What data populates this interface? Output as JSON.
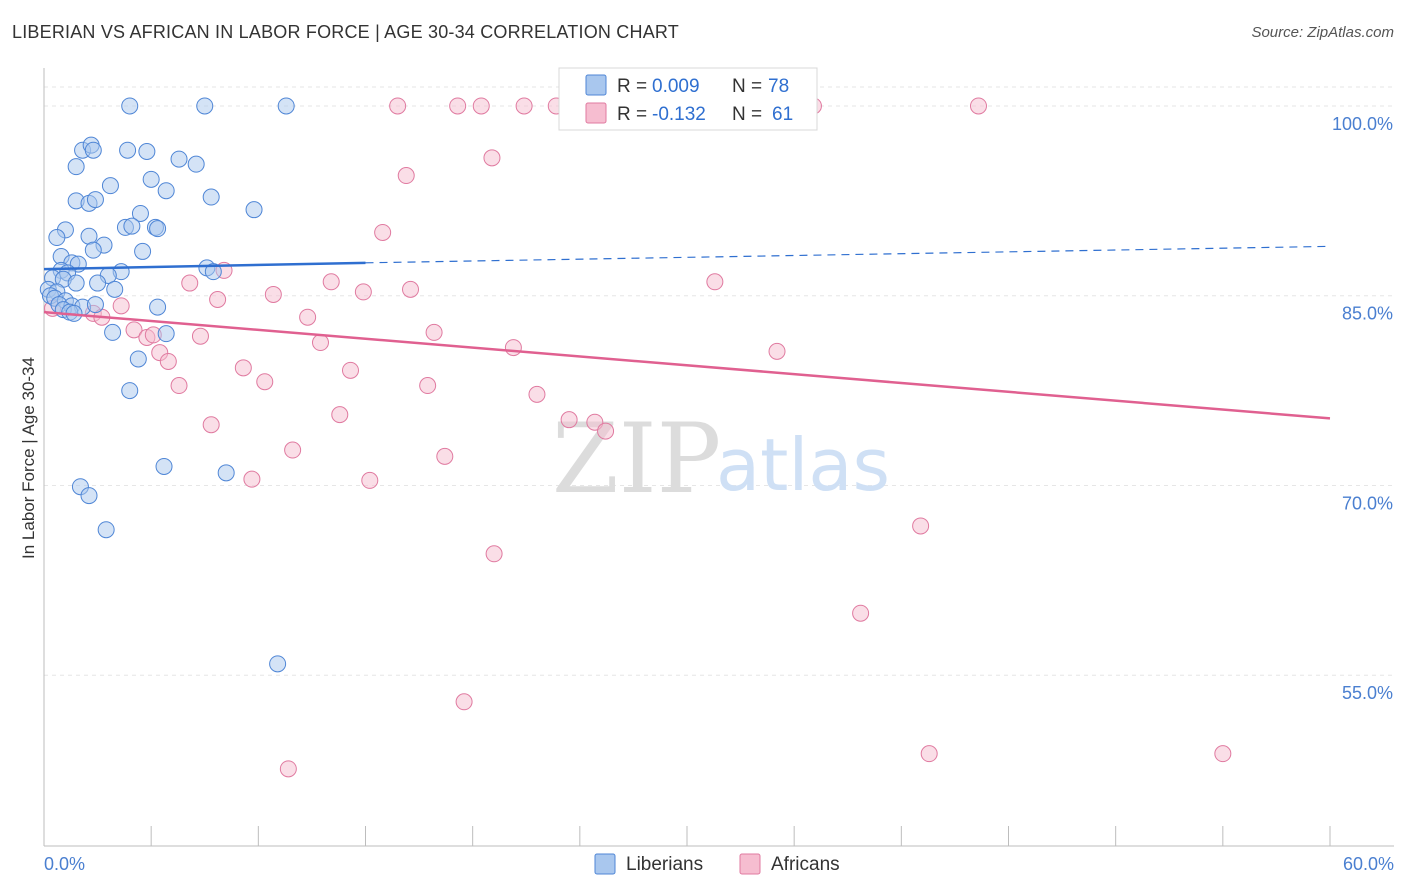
{
  "title": "LIBERIAN VS AFRICAN IN LABOR FORCE | AGE 30-34 CORRELATION CHART",
  "source": "Source: ZipAtlas.com",
  "watermark": {
    "zip": "ZIP",
    "atlas": "atlas"
  },
  "legend": {
    "r_label": "R =",
    "n_label": "N =",
    "items": [
      {
        "r": "0.009",
        "n": "78"
      },
      {
        "r": "-0.132",
        "n": "61"
      }
    ]
  },
  "bottom_legend": [
    "Liberians",
    "Africans"
  ],
  "colors": {
    "liberians_fill": "#a9c7ee",
    "liberians_stroke": "#4f86d6",
    "liberians_line": "#2f6fd0",
    "africans_fill": "#f6bdd0",
    "africans_stroke": "#e07aa0",
    "africans_line": "#e06090",
    "grid": "#e6e6e6",
    "tick_label": "#4a7fd0"
  },
  "chart_data": {
    "type": "scatter",
    "title": "LIBERIAN VS AFRICAN IN LABOR FORCE | AGE 30-34 CORRELATION CHART",
    "xlabel": "",
    "ylabel": "In Labor Force | Age 30-34",
    "xlim": [
      0,
      60
    ],
    "ylim": [
      41.5,
      103
    ],
    "x_tick_labels": [
      "0.0%",
      "60.0%"
    ],
    "y_ticks": [
      100,
      85,
      70,
      55
    ],
    "y_tick_labels": [
      "100.0%",
      "85.0%",
      "70.0%",
      "55.0%"
    ],
    "grid": true,
    "legend_position": "top-center",
    "series": [
      {
        "name": "Liberians",
        "r": 0.009,
        "n": 78,
        "trend": {
          "x": [
            0,
            15
          ],
          "y": [
            87.1,
            87.6
          ],
          "dashed_to": [
            60,
            88.9
          ]
        },
        "points": [
          [
            4.0,
            100.0
          ],
          [
            7.5,
            100.0
          ],
          [
            11.3,
            100.0
          ],
          [
            1.8,
            96.5
          ],
          [
            2.2,
            96.9
          ],
          [
            2.3,
            96.5
          ],
          [
            3.9,
            96.5
          ],
          [
            4.8,
            96.4
          ],
          [
            6.3,
            95.8
          ],
          [
            7.1,
            95.4
          ],
          [
            1.5,
            95.2
          ],
          [
            5.0,
            94.2
          ],
          [
            3.1,
            93.7
          ],
          [
            5.7,
            93.3
          ],
          [
            7.8,
            92.8
          ],
          [
            1.5,
            92.5
          ],
          [
            2.1,
            92.3
          ],
          [
            2.4,
            92.6
          ],
          [
            4.5,
            91.5
          ],
          [
            9.8,
            91.8
          ],
          [
            3.8,
            90.4
          ],
          [
            4.1,
            90.5
          ],
          [
            5.2,
            90.4
          ],
          [
            5.3,
            90.3
          ],
          [
            1.0,
            90.2
          ],
          [
            0.6,
            89.6
          ],
          [
            2.1,
            89.7
          ],
          [
            2.8,
            89.0
          ],
          [
            2.3,
            88.6
          ],
          [
            0.8,
            88.1
          ],
          [
            4.6,
            88.5
          ],
          [
            1.3,
            87.6
          ],
          [
            1.6,
            87.5
          ],
          [
            0.8,
            87.0
          ],
          [
            1.1,
            86.8
          ],
          [
            3.6,
            86.9
          ],
          [
            7.6,
            87.2
          ],
          [
            7.9,
            86.9
          ],
          [
            3.0,
            86.6
          ],
          [
            0.4,
            86.4
          ],
          [
            0.9,
            86.3
          ],
          [
            1.5,
            86.0
          ],
          [
            2.5,
            86.0
          ],
          [
            3.3,
            85.5
          ],
          [
            0.2,
            85.5
          ],
          [
            0.6,
            85.3
          ],
          [
            0.3,
            85.0
          ],
          [
            0.5,
            84.8
          ],
          [
            1.0,
            84.6
          ],
          [
            0.7,
            84.3
          ],
          [
            1.3,
            84.2
          ],
          [
            1.8,
            84.1
          ],
          [
            2.4,
            84.3
          ],
          [
            0.9,
            83.9
          ],
          [
            1.2,
            83.7
          ],
          [
            1.4,
            83.6
          ],
          [
            5.3,
            84.1
          ],
          [
            3.2,
            82.1
          ],
          [
            5.7,
            82.0
          ],
          [
            4.4,
            80.0
          ],
          [
            4.0,
            77.5
          ],
          [
            5.6,
            71.5
          ],
          [
            8.5,
            71.0
          ],
          [
            1.7,
            69.9
          ],
          [
            2.1,
            69.2
          ],
          [
            2.9,
            66.5
          ],
          [
            10.9,
            55.9
          ]
        ]
      },
      {
        "name": "Africans",
        "r": -0.132,
        "n": 61,
        "trend": {
          "x": [
            0,
            60
          ],
          "y": [
            83.7,
            75.3
          ]
        },
        "points": [
          [
            16.5,
            100.0
          ],
          [
            19.3,
            100.0
          ],
          [
            20.4,
            100.0
          ],
          [
            22.4,
            100.0
          ],
          [
            23.9,
            100.0
          ],
          [
            25.1,
            100.0
          ],
          [
            35.9,
            100.0
          ],
          [
            43.6,
            100.0
          ],
          [
            20.9,
            95.9
          ],
          [
            16.9,
            94.5
          ],
          [
            15.8,
            90.0
          ],
          [
            8.4,
            87.0
          ],
          [
            6.8,
            86.0
          ],
          [
            13.4,
            86.1
          ],
          [
            31.3,
            86.1
          ],
          [
            10.7,
            85.1
          ],
          [
            14.9,
            85.3
          ],
          [
            17.1,
            85.5
          ],
          [
            8.1,
            84.7
          ],
          [
            3.6,
            84.2
          ],
          [
            0.4,
            84.0
          ],
          [
            2.3,
            83.6
          ],
          [
            2.7,
            83.3
          ],
          [
            12.3,
            83.3
          ],
          [
            7.3,
            81.8
          ],
          [
            18.2,
            82.1
          ],
          [
            4.2,
            82.3
          ],
          [
            4.8,
            81.7
          ],
          [
            5.1,
            81.9
          ],
          [
            12.9,
            81.3
          ],
          [
            21.9,
            80.9
          ],
          [
            34.2,
            80.6
          ],
          [
            5.4,
            80.5
          ],
          [
            5.8,
            79.8
          ],
          [
            9.3,
            79.3
          ],
          [
            14.3,
            79.1
          ],
          [
            10.3,
            78.2
          ],
          [
            6.3,
            77.9
          ],
          [
            17.9,
            77.9
          ],
          [
            23.0,
            77.2
          ],
          [
            13.8,
            75.6
          ],
          [
            24.5,
            75.2
          ],
          [
            25.7,
            75.0
          ],
          [
            26.2,
            74.3
          ],
          [
            7.8,
            74.8
          ],
          [
            11.6,
            72.8
          ],
          [
            18.7,
            72.3
          ],
          [
            9.7,
            70.5
          ],
          [
            15.2,
            70.4
          ],
          [
            40.9,
            66.8
          ],
          [
            21.0,
            64.6
          ],
          [
            38.1,
            59.9
          ],
          [
            19.6,
            52.9
          ],
          [
            41.3,
            48.8
          ],
          [
            55.0,
            48.8
          ],
          [
            11.4,
            47.6
          ]
        ]
      }
    ]
  }
}
